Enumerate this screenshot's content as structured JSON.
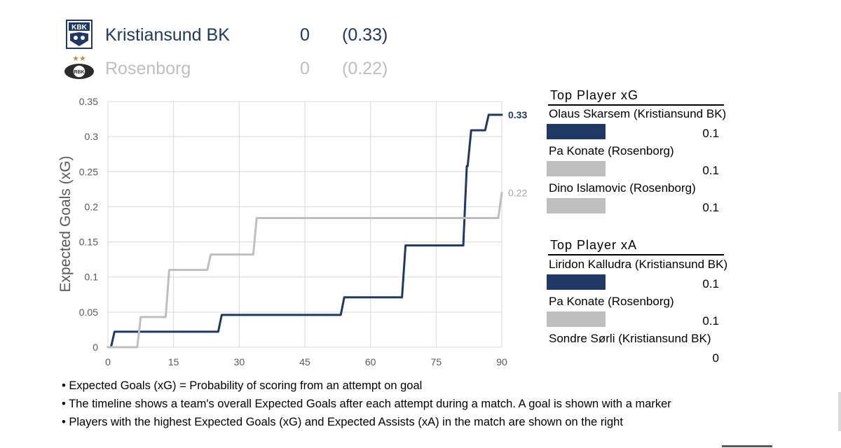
{
  "header": {
    "home": {
      "logo_text": "KBK",
      "name": "Kristiansund BK",
      "score": "0",
      "xg": "(0.33)"
    },
    "away": {
      "logo_text": "RBK",
      "name": "Rosenborg",
      "score": "0",
      "xg": "(0.22)"
    }
  },
  "colors": {
    "home": "#1f3864",
    "away": "#bfbfbf",
    "grid": "#d9d9d9",
    "axis_text": "#595959"
  },
  "chart_data": {
    "type": "line",
    "title": "",
    "xlabel": "",
    "ylabel": "Expected Goals (xG)",
    "xlim": [
      0,
      90
    ],
    "ylim": [
      0,
      0.35
    ],
    "x_ticks": [
      0,
      15,
      30,
      45,
      60,
      75,
      90
    ],
    "y_ticks": [
      0,
      0.05,
      0.1,
      0.15,
      0.2,
      0.25,
      0.3,
      0.35
    ],
    "x_tick_labels": [
      "0",
      "15",
      "30",
      "45",
      "60",
      "75",
      "90"
    ],
    "y_tick_labels": [
      "0",
      "0.05",
      "0.1",
      "0.15",
      "0.2",
      "0.25",
      "0.3",
      "0.35"
    ],
    "grid": true,
    "series": [
      {
        "name": "Kristiansund BK",
        "end_label": "0.33",
        "shots": [
          {
            "minute": 1.5,
            "xg": 0.022
          },
          {
            "minute": 26,
            "xg": 0.046
          },
          {
            "minute": 54,
            "xg": 0.071
          },
          {
            "minute": 68,
            "xg": 0.145
          },
          {
            "minute": 82,
            "xg": 0.258
          },
          {
            "minute": 83,
            "xg": 0.309
          },
          {
            "minute": 87,
            "xg": 0.331
          }
        ]
      },
      {
        "name": "Rosenborg",
        "end_label": "0.22",
        "shots": [
          {
            "minute": 7.5,
            "xg": 0.043
          },
          {
            "minute": 14,
            "xg": 0.11
          },
          {
            "minute": 23.5,
            "xg": 0.132
          },
          {
            "minute": 34,
            "xg": 0.184
          },
          {
            "minute": 90,
            "xg": 0.22
          }
        ]
      }
    ]
  },
  "top_xg": {
    "title": "Top Player xG",
    "players": [
      {
        "name": "Olaus Skarsem (Kristiansund BK)",
        "value": "0.1",
        "team": "home",
        "bar": 1
      },
      {
        "name": "Pa Konate (Rosenborg)",
        "value": "0.1",
        "team": "away",
        "bar": 1
      },
      {
        "name": "Dino Islamovic (Rosenborg)",
        "value": "0.1",
        "team": "away",
        "bar": 1
      }
    ]
  },
  "top_xa": {
    "title": "Top Player xA",
    "players": [
      {
        "name": "Liridon Kalludra (Kristiansund BK)",
        "value": "0.1",
        "team": "home",
        "bar": 1
      },
      {
        "name": "Pa Konate (Rosenborg)",
        "value": "0.1",
        "team": "away",
        "bar": 1
      },
      {
        "name": "Sondre Sørli (Kristiansund BK)",
        "value": "0",
        "team": "home",
        "bar": 0
      }
    ]
  },
  "notes": [
    "• Expected Goals (xG) = Probability of scoring from an attempt on goal",
    "• The timeline shows a team's overall Expected Goals after each attempt during a match. A goal is shown with a marker",
    "• Players with the highest Expected Goals (xG) and Expected Assists (xA) in the match are shown on the right"
  ]
}
